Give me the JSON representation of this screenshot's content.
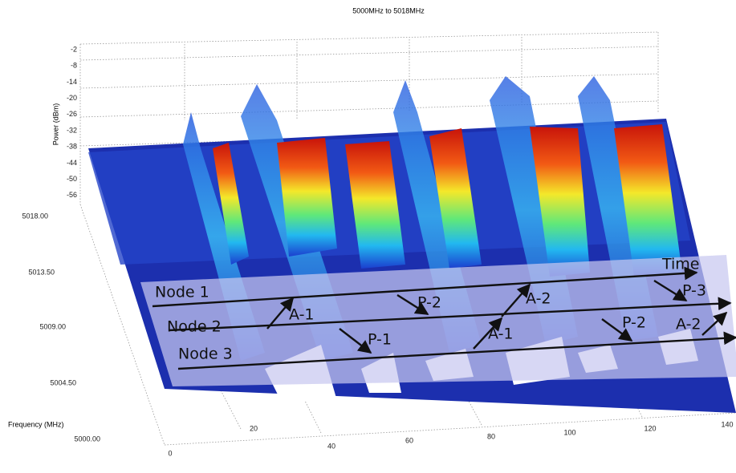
{
  "title": "5000MHz to 5018MHz",
  "power_axis": {
    "label": "Power (dBm)",
    "ticks": [
      "-2",
      "-8",
      "-14",
      "-20",
      "-26",
      "-32",
      "-38",
      "-44",
      "-50",
      "-56"
    ]
  },
  "frequency_axis": {
    "label": "Frequency (MHz)",
    "ticks": [
      "5018.00",
      "5013.50",
      "5009.00",
      "5004.50",
      "5000.00"
    ]
  },
  "time_axis": {
    "ticks": [
      "0",
      "20",
      "40",
      "60",
      "80",
      "100",
      "120",
      "140"
    ]
  },
  "annotations": {
    "time_label": "Time",
    "nodes": [
      "Node 1",
      "Node 2",
      "Node 3"
    ],
    "events": [
      "A-1",
      "P-2",
      "A-2",
      "P-3",
      "P-1",
      "A-1",
      "P-2",
      "A-2"
    ]
  }
}
